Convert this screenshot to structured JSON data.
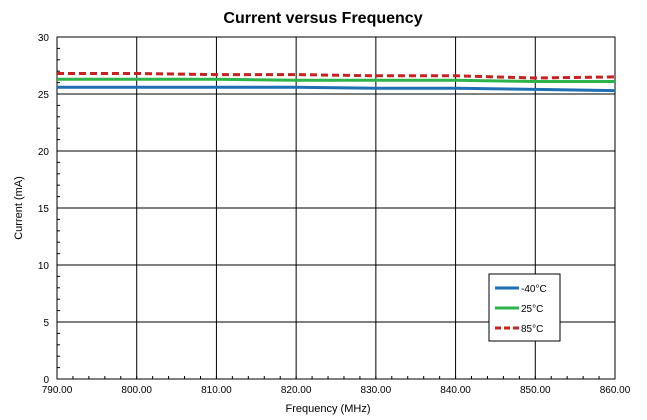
{
  "chart_data": {
    "type": "line",
    "title": "Current versus Frequency",
    "xlabel": "Frequency (MHz)",
    "ylabel": "Current (mA)",
    "xlim": [
      790,
      860
    ],
    "ylim": [
      0,
      30
    ],
    "x_ticks": [
      "790.00",
      "800.00",
      "810.00",
      "820.00",
      "830.00",
      "840.00",
      "850.00",
      "860.00"
    ],
    "y_ticks": [
      "0",
      "5",
      "10",
      "15",
      "20",
      "25",
      "30"
    ],
    "grid": true,
    "legend_position": "bottom-right",
    "x": [
      790,
      800,
      810,
      820,
      830,
      840,
      850,
      860
    ],
    "series": [
      {
        "name": "-40°C",
        "color": "#1f6fb4",
        "dash": "solid",
        "values": [
          25.6,
          25.6,
          25.6,
          25.6,
          25.5,
          25.5,
          25.4,
          25.3
        ]
      },
      {
        "name": "25°C",
        "color": "#2cb34a",
        "dash": "solid",
        "values": [
          26.3,
          26.3,
          26.3,
          26.2,
          26.2,
          26.2,
          26.1,
          26.1
        ]
      },
      {
        "name": "85°C",
        "color": "#c8221e",
        "dash": "dashed",
        "values": [
          26.8,
          26.8,
          26.7,
          26.7,
          26.6,
          26.6,
          26.4,
          26.5
        ]
      }
    ]
  }
}
